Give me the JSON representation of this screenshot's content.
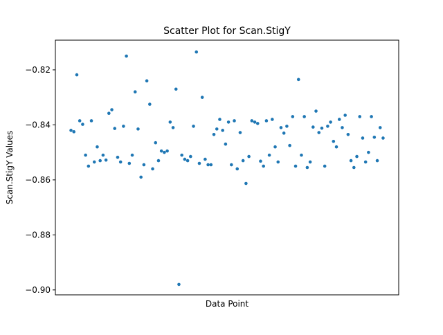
{
  "chart_data": {
    "type": "scatter",
    "title": "Scatter Plot for Scan.StigY",
    "x_label": "Data Point",
    "y_label": "Scan.StigY Values",
    "x": [
      0,
      1,
      2,
      3,
      4,
      5,
      6,
      7,
      8,
      9,
      10,
      11,
      12,
      13,
      14,
      15,
      16,
      17,
      18,
      19,
      20,
      21,
      22,
      23,
      24,
      25,
      26,
      27,
      28,
      29,
      30,
      31,
      32,
      33,
      34,
      35,
      36,
      37,
      38,
      39,
      40,
      41,
      42,
      43,
      44,
      45,
      46,
      47,
      48,
      49,
      50,
      51,
      52,
      53,
      54,
      55,
      56,
      57,
      58,
      59,
      60,
      61,
      62,
      63,
      64,
      65,
      66,
      67,
      68,
      69,
      70,
      71,
      72,
      73,
      74,
      75,
      76,
      77,
      78,
      79,
      80,
      81,
      82,
      83,
      84,
      85,
      86,
      87,
      88,
      89,
      90,
      91,
      92,
      93,
      94,
      95,
      96,
      97,
      98,
      99,
      100,
      101,
      102,
      103,
      104,
      105,
      106,
      107
    ],
    "values": [
      -0.842,
      -0.8425,
      -0.8218,
      -0.8385,
      -0.8398,
      -0.851,
      -0.855,
      -0.8385,
      -0.8535,
      -0.848,
      -0.853,
      -0.851,
      -0.8528,
      -0.8358,
      -0.8345,
      -0.8413,
      -0.8518,
      -0.8535,
      -0.8405,
      -0.815,
      -0.854,
      -0.851,
      -0.828,
      -0.8415,
      -0.859,
      -0.8545,
      -0.824,
      -0.8325,
      -0.856,
      -0.8465,
      -0.853,
      -0.8495,
      -0.85,
      -0.8495,
      -0.839,
      -0.841,
      -0.827,
      -0.898,
      -0.851,
      -0.8525,
      -0.853,
      -0.8515,
      -0.8405,
      -0.8135,
      -0.854,
      -0.83,
      -0.8525,
      -0.8545,
      -0.8545,
      -0.8435,
      -0.8415,
      -0.838,
      -0.842,
      -0.847,
      -0.839,
      -0.8545,
      -0.8385,
      -0.856,
      -0.8428,
      -0.853,
      -0.8613,
      -0.8515,
      -0.8385,
      -0.839,
      -0.8395,
      -0.8532,
      -0.855,
      -0.8385,
      -0.851,
      -0.838,
      -0.848,
      -0.8535,
      -0.841,
      -0.843,
      -0.8405,
      -0.8475,
      -0.837,
      -0.855,
      -0.8235,
      -0.851,
      -0.837,
      -0.8555,
      -0.8535,
      -0.8408,
      -0.835,
      -0.8428,
      -0.8412,
      -0.855,
      -0.8405,
      -0.839,
      -0.846,
      -0.848,
      -0.838,
      -0.841,
      -0.8365,
      -0.8435,
      -0.853,
      -0.8555,
      -0.8515,
      -0.837,
      -0.8448,
      -0.8535,
      -0.85,
      -0.837,
      -0.8445,
      -0.853,
      -0.841,
      -0.8448
    ],
    "color": "#1f77b4",
    "xlim": [
      -5.35,
      112.35
    ],
    "ylim": [
      -0.9018,
      -0.8092
    ],
    "yticks": [
      {
        "value": -0.9,
        "label": "−0.90"
      },
      {
        "value": -0.88,
        "label": "−0.88"
      },
      {
        "value": -0.86,
        "label": "−0.86"
      },
      {
        "value": -0.84,
        "label": "−0.84"
      },
      {
        "value": -0.82,
        "label": "−0.82"
      }
    ],
    "grid": false
  }
}
